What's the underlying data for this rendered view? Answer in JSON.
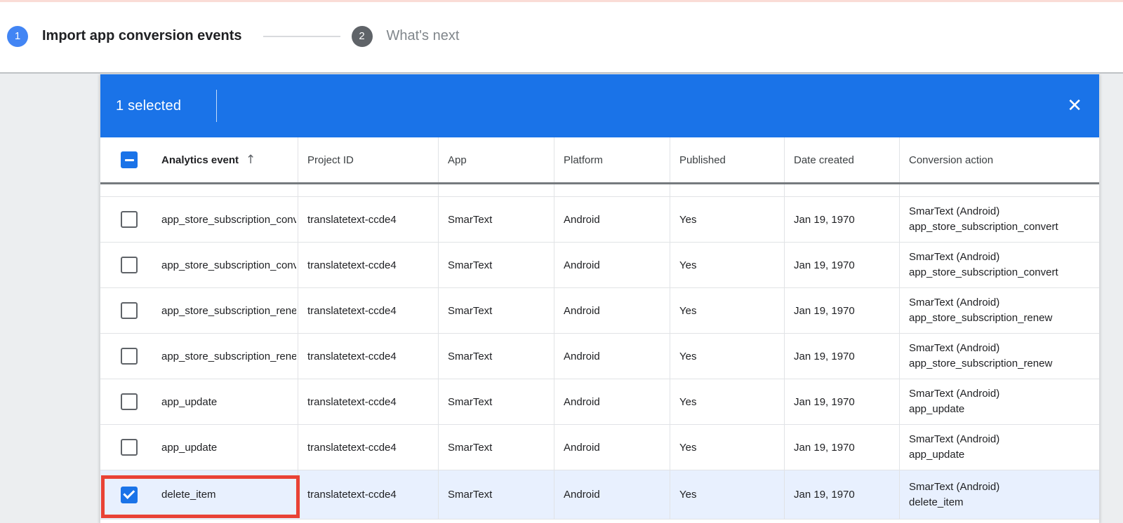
{
  "stepper": {
    "steps": [
      {
        "number": "1",
        "label": "Import app conversion events"
      },
      {
        "number": "2",
        "label": "What's next"
      }
    ]
  },
  "selection_bar": {
    "selected_text": "1 selected",
    "close_icon": "✕"
  },
  "table": {
    "header": {
      "columns": [
        "Analytics event",
        "Project ID",
        "App",
        "Platform",
        "Published",
        "Date created",
        "Conversion action"
      ],
      "sort_icon": "↑",
      "checkbox_state": "indeterminate"
    },
    "rows": [
      {
        "event": "app_store_subscription_convert",
        "project_id": "translatetext-ccde4",
        "app": "SmarText",
        "platform": "Android",
        "published": "Yes",
        "date_created": "Jan 19, 1970",
        "conversion_action_line1": "SmarText (Android)",
        "conversion_action_line2": "app_store_subscription_convert",
        "checked": false,
        "selected": false,
        "highlighted": false
      },
      {
        "event": "app_store_subscription_convert",
        "project_id": "translatetext-ccde4",
        "app": "SmarText",
        "platform": "Android",
        "published": "Yes",
        "date_created": "Jan 19, 1970",
        "conversion_action_line1": "SmarText (Android)",
        "conversion_action_line2": "app_store_subscription_convert",
        "checked": false,
        "selected": false,
        "highlighted": false
      },
      {
        "event": "app_store_subscription_renew",
        "project_id": "translatetext-ccde4",
        "app": "SmarText",
        "platform": "Android",
        "published": "Yes",
        "date_created": "Jan 19, 1970",
        "conversion_action_line1": "SmarText (Android)",
        "conversion_action_line2": "app_store_subscription_renew",
        "checked": false,
        "selected": false,
        "highlighted": false
      },
      {
        "event": "app_store_subscription_renew",
        "project_id": "translatetext-ccde4",
        "app": "SmarText",
        "platform": "Android",
        "published": "Yes",
        "date_created": "Jan 19, 1970",
        "conversion_action_line1": "SmarText (Android)",
        "conversion_action_line2": "app_store_subscription_renew",
        "checked": false,
        "selected": false,
        "highlighted": false
      },
      {
        "event": "app_update",
        "project_id": "translatetext-ccde4",
        "app": "SmarText",
        "platform": "Android",
        "published": "Yes",
        "date_created": "Jan 19, 1970",
        "conversion_action_line1": "SmarText (Android)",
        "conversion_action_line2": "app_update",
        "checked": false,
        "selected": false,
        "highlighted": false
      },
      {
        "event": "app_update",
        "project_id": "translatetext-ccde4",
        "app": "SmarText",
        "platform": "Android",
        "published": "Yes",
        "date_created": "Jan 19, 1970",
        "conversion_action_line1": "SmarText (Android)",
        "conversion_action_line2": "app_update",
        "checked": false,
        "selected": false,
        "highlighted": false
      },
      {
        "event": "delete_item",
        "project_id": "translatetext-ccde4",
        "app": "SmarText",
        "platform": "Android",
        "published": "Yes",
        "date_created": "Jan 19, 1970",
        "conversion_action_line1": "SmarText (Android)",
        "conversion_action_line2": "delete_item",
        "checked": true,
        "selected": true,
        "highlighted": true
      }
    ]
  },
  "colors": {
    "selection_bar_blue": "#1a73e8",
    "step_circle_blue": "#4285f4",
    "step_circle_gray": "#5f6368",
    "selected_row_bg": "#e8f0fe",
    "highlight_red": "#e94235",
    "top_accent_line": "#fadcd6"
  }
}
